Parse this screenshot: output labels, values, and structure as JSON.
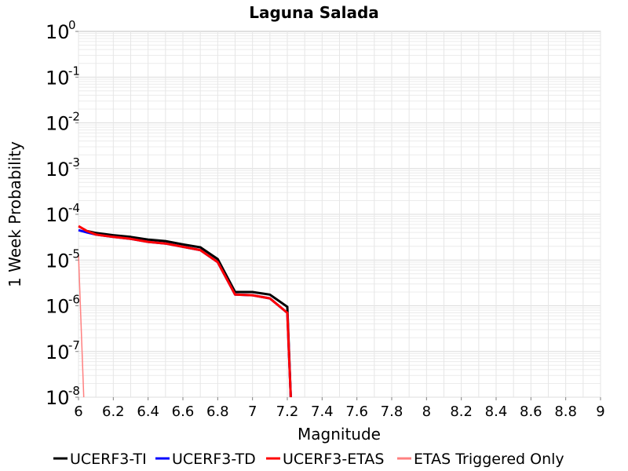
{
  "chart_data": {
    "type": "line",
    "title": "Laguna Salada",
    "xlabel": "Magnitude",
    "ylabel": "1 Week Probability",
    "xlim": [
      6,
      9
    ],
    "ylim": [
      1e-08,
      1
    ],
    "y_scale": "log",
    "grid": true,
    "legend_position": "bottom",
    "x_ticks": [
      "6",
      "6.2",
      "6.4",
      "6.6",
      "6.8",
      "7",
      "7.2",
      "7.4",
      "7.6",
      "7.8",
      "8",
      "8.2",
      "8.4",
      "8.6",
      "8.8",
      "9"
    ],
    "y_ticks": [
      {
        "base": "10",
        "exp": "0"
      },
      {
        "base": "10",
        "exp": "-1"
      },
      {
        "base": "10",
        "exp": "-2"
      },
      {
        "base": "10",
        "exp": "-3"
      },
      {
        "base": "10",
        "exp": "-4"
      },
      {
        "base": "10",
        "exp": "-5"
      },
      {
        "base": "10",
        "exp": "-6"
      },
      {
        "base": "10",
        "exp": "-7"
      },
      {
        "base": "10",
        "exp": "-8"
      }
    ],
    "series": [
      {
        "name": "UCERF3-TI",
        "color": "#000000",
        "points": [
          [
            6.05,
            4.3e-05
          ],
          [
            6.1,
            3.9e-05
          ],
          [
            6.2,
            3.5e-05
          ],
          [
            6.3,
            3.2e-05
          ],
          [
            6.4,
            2.8e-05
          ],
          [
            6.5,
            2.6e-05
          ],
          [
            6.6,
            2.2e-05
          ],
          [
            6.7,
            1.9e-05
          ],
          [
            6.8,
            1.05e-05
          ],
          [
            6.9,
            2e-06
          ],
          [
            7.0,
            2e-06
          ],
          [
            7.1,
            1.75e-06
          ],
          [
            7.2,
            9.5e-07
          ],
          [
            7.22,
            1e-08
          ]
        ]
      },
      {
        "name": "UCERF3-TD",
        "color": "#0000ff",
        "points": [
          [
            6.0,
            4.5e-05
          ],
          [
            6.05,
            4e-05
          ],
          [
            6.1,
            3.6e-05
          ],
          [
            6.2,
            3.2e-05
          ],
          [
            6.3,
            2.9e-05
          ],
          [
            6.4,
            2.5e-05
          ],
          [
            6.5,
            2.3e-05
          ],
          [
            6.6,
            1.95e-05
          ],
          [
            6.7,
            1.65e-05
          ],
          [
            6.8,
            9e-06
          ],
          [
            6.9,
            1.75e-06
          ],
          [
            7.0,
            1.7e-06
          ],
          [
            7.1,
            1.45e-06
          ],
          [
            7.2,
            7e-07
          ],
          [
            7.22,
            1e-08
          ]
        ]
      },
      {
        "name": "UCERF3-ETAS",
        "color": "#ff0000",
        "points": [
          [
            6.0,
            5.5e-05
          ],
          [
            6.05,
            4.3e-05
          ],
          [
            6.1,
            3.6e-05
          ],
          [
            6.2,
            3.2e-05
          ],
          [
            6.3,
            2.9e-05
          ],
          [
            6.4,
            2.5e-05
          ],
          [
            6.5,
            2.3e-05
          ],
          [
            6.6,
            1.95e-05
          ],
          [
            6.7,
            1.65e-05
          ],
          [
            6.8,
            9e-06
          ],
          [
            6.9,
            1.75e-06
          ],
          [
            7.0,
            1.7e-06
          ],
          [
            7.1,
            1.45e-06
          ],
          [
            7.2,
            7e-07
          ],
          [
            7.22,
            1e-08
          ]
        ]
      },
      {
        "name": "ETAS Triggered Only",
        "color": "#ff8080",
        "points": [
          [
            6.0,
            1.3e-05
          ],
          [
            6.03,
            1e-08
          ]
        ]
      }
    ]
  }
}
